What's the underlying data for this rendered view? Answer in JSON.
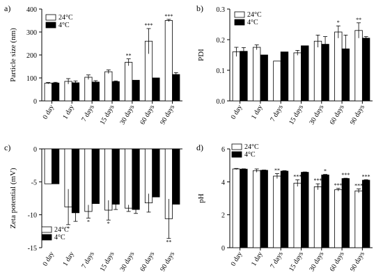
{
  "chart_data": [
    {
      "type": "bar",
      "panel_label": "a)",
      "ylabel": "Particle size (nm)",
      "categories": [
        "0 day",
        "1 day",
        "7 days",
        "15 days",
        "30 days",
        "60 days",
        "90 days"
      ],
      "ylim": [
        0,
        400
      ],
      "yticks": [
        0,
        100,
        200,
        300,
        400
      ],
      "legend_position": "top-left",
      "series": [
        {
          "name": "24°C",
          "color": "#ffffff",
          "values": [
            77,
            85,
            103,
            127,
            168,
            260,
            350
          ],
          "errors": [
            3,
            12,
            10,
            8,
            15,
            55,
            5
          ],
          "annotations": [
            "",
            "",
            "",
            "",
            "**",
            "***",
            "***"
          ]
        },
        {
          "name": "4°C",
          "color": "#000000",
          "values": [
            78,
            79,
            82,
            84,
            90,
            100,
            115
          ],
          "errors": [
            3,
            8,
            6,
            3,
            0,
            0,
            8
          ],
          "annotations": [
            "",
            "",
            "",
            "",
            "",
            "",
            ""
          ]
        }
      ]
    },
    {
      "type": "bar",
      "panel_label": "b)",
      "ylabel": "PDI",
      "categories": [
        "0 day",
        "1 day",
        "7 days",
        "15 days",
        "30 days",
        "60 days",
        "90 days"
      ],
      "ylim": [
        0,
        0.3
      ],
      "yticks": [
        0.0,
        0.1,
        0.2,
        0.3
      ],
      "legend_position": "top-left",
      "series": [
        {
          "name": "24°C",
          "color": "#ffffff",
          "values": [
            0.16,
            0.175,
            0.13,
            0.157,
            0.195,
            0.225,
            0.23
          ],
          "errors": [
            0.015,
            0.008,
            0,
            0.008,
            0.02,
            0.02,
            0.025
          ],
          "annotations": [
            "",
            "",
            "",
            "",
            "",
            "*",
            "**"
          ]
        },
        {
          "name": "4°C",
          "color": "#000000",
          "values": [
            0.162,
            0.15,
            0.16,
            0.18,
            0.185,
            0.17,
            0.205
          ],
          "errors": [
            0.012,
            0,
            0,
            0,
            0.025,
            0.045,
            0.005
          ],
          "annotations": [
            "",
            "",
            "",
            "",
            "",
            "",
            ""
          ]
        }
      ]
    },
    {
      "type": "bar",
      "panel_label": "c)",
      "ylabel": "Zeta potential (mV)",
      "categories": [
        "0 day",
        "1 day",
        "7 days",
        "15 days",
        "30 days",
        "60 days",
        "90 days"
      ],
      "ylim": [
        -15,
        0
      ],
      "yticks": [
        0,
        -5,
        -10,
        -15
      ],
      "legend_position": "bottom-left",
      "series": [
        {
          "name": "24°C",
          "color": "#ffffff",
          "values": [
            -5.3,
            -8.8,
            -9.5,
            -9.3,
            -9.0,
            -8.2,
            -10.6
          ],
          "errors": [
            0,
            2.7,
            1.0,
            1.5,
            0.5,
            1.4,
            3.0
          ],
          "annotations": [
            "",
            "*",
            "*",
            "*",
            "",
            "",
            "**"
          ]
        },
        {
          "name": "4°C",
          "color": "#000000",
          "values": [
            -5.3,
            -9.7,
            -8.3,
            -8.4,
            -9.2,
            -7.3,
            -8.4
          ],
          "errors": [
            0,
            1.3,
            0,
            0.8,
            0.6,
            0,
            0
          ],
          "annotations": [
            "",
            "",
            "",
            "",
            "",
            "",
            ""
          ]
        }
      ]
    },
    {
      "type": "bar",
      "panel_label": "d)",
      "ylabel": "pH",
      "categories": [
        "0 day",
        "1 day",
        "7 days",
        "15 days",
        "30 days",
        "60 days",
        "90 days"
      ],
      "ylim": [
        0,
        6
      ],
      "yticks": [
        0,
        2,
        4,
        6
      ],
      "legend_position": "top-left",
      "series": [
        {
          "name": "24°C",
          "color": "#ffffff",
          "values": [
            4.78,
            4.68,
            4.35,
            3.92,
            3.7,
            3.52,
            3.45
          ],
          "errors": [
            0.03,
            0.1,
            0.15,
            0.2,
            0.18,
            0.08,
            0.12
          ],
          "annotations": [
            "",
            "",
            "**",
            "***",
            "***",
            "***",
            "***"
          ]
        },
        {
          "name": "4°C",
          "color": "#000000",
          "values": [
            4.77,
            4.7,
            4.65,
            4.58,
            4.42,
            4.2,
            4.1
          ],
          "errors": [
            0.02,
            0.02,
            0.03,
            0.02,
            0.03,
            0.02,
            0.03
          ],
          "annotations": [
            "",
            "",
            "",
            "",
            "*",
            "***",
            "***"
          ]
        }
      ]
    }
  ]
}
